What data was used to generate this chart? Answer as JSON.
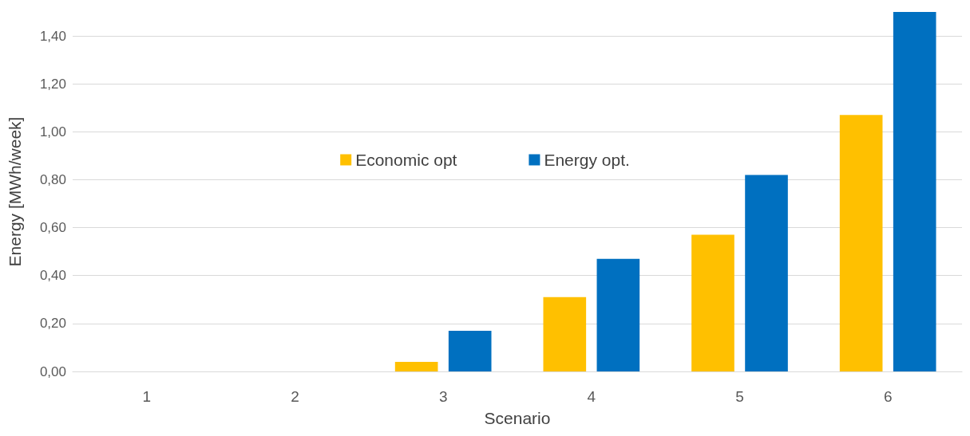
{
  "chart_data": {
    "type": "bar",
    "xlabel": "Scenario",
    "ylabel": "Energy [MWh/week]",
    "categories": [
      "1",
      "2",
      "3",
      "4",
      "5",
      "6"
    ],
    "series": [
      {
        "name": "Economic opt",
        "color": "#ffc000",
        "values": [
          0,
          0,
          0.04,
          0.31,
          0.57,
          1.07
        ]
      },
      {
        "name": "Energy opt.",
        "color": "#0070c0",
        "values": [
          0,
          0,
          0.17,
          0.47,
          0.82,
          1.5
        ]
      }
    ],
    "ylim": [
      0,
      1.5
    ],
    "yticks": [
      {
        "value": 0,
        "label": "0,00"
      },
      {
        "value": 0.2,
        "label": "0,20"
      },
      {
        "value": 0.4,
        "label": "0,40"
      },
      {
        "value": 0.6,
        "label": "0,60"
      },
      {
        "value": 0.8,
        "label": "0,80"
      },
      {
        "value": 1.0,
        "label": "1,00"
      },
      {
        "value": 1.2,
        "label": "1,20"
      },
      {
        "value": 1.4,
        "label": "1,40"
      }
    ],
    "grid": "y",
    "legend": "center"
  }
}
